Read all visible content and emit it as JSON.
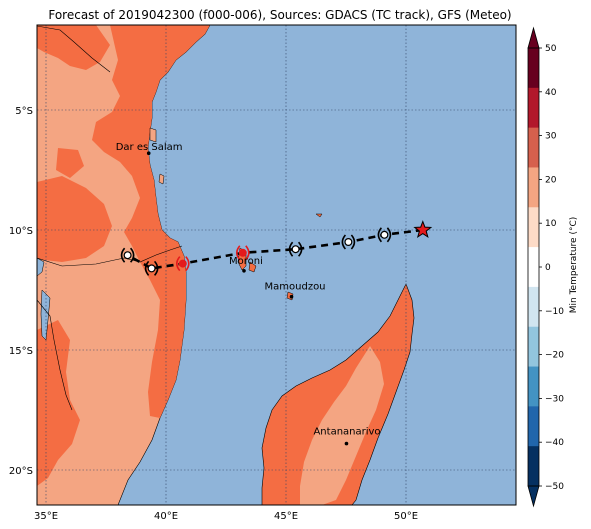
{
  "title": "Forecast of 2019042300 (f000-006), Sources: GDACS (TC track), GFS (Meteo)",
  "lat_labels": [
    "5°S",
    "10°S",
    "15°S",
    "20°S"
  ],
  "lon_labels": [
    "35°E",
    "40°E",
    "45°E",
    "50°E"
  ],
  "cities": [
    {
      "name": "Dar es Salam",
      "lon": 39.28,
      "lat": -6.8
    },
    {
      "name": "Moroni",
      "lon": 43.25,
      "lat": -11.7
    },
    {
      "name": "Mamoudzou",
      "lon": 45.23,
      "lat": -12.78
    },
    {
      "name": "Antananarivo",
      "lon": 47.52,
      "lat": -18.9
    }
  ],
  "track": [
    {
      "lon": 50.7,
      "lat": -10.0,
      "symbol": "star"
    },
    {
      "lon": 49.1,
      "lat": -10.2,
      "symbol": "storm"
    },
    {
      "lon": 47.6,
      "lat": -10.5,
      "symbol": "storm"
    },
    {
      "lon": 45.4,
      "lat": -10.8,
      "symbol": "storm"
    },
    {
      "lon": 43.2,
      "lat": -10.95,
      "symbol": "storm-red"
    },
    {
      "lon": 40.7,
      "lat": -11.4,
      "symbol": "storm-red"
    },
    {
      "lon": 39.4,
      "lat": -11.6,
      "symbol": "storm"
    },
    {
      "lon": 38.4,
      "lat": -11.05,
      "symbol": "storm"
    }
  ],
  "colorbar": {
    "label": "Min Temperature (°C)",
    "ticks": [
      "50",
      "40",
      "30",
      "20",
      "10",
      "0",
      "−10",
      "−20",
      "−30",
      "−40",
      "−50"
    ],
    "colors": [
      "#67001f",
      "#b2182b",
      "#d6604d",
      "#f4a582",
      "#fddbc7",
      "#ffffff",
      "#d1e5f0",
      "#92c5de",
      "#4393c3",
      "#2166ac",
      "#053061"
    ]
  },
  "map_colors": {
    "sea": "#8fb4d9",
    "land_warm": "#f4a582",
    "land_hot": "#f46d43"
  }
}
